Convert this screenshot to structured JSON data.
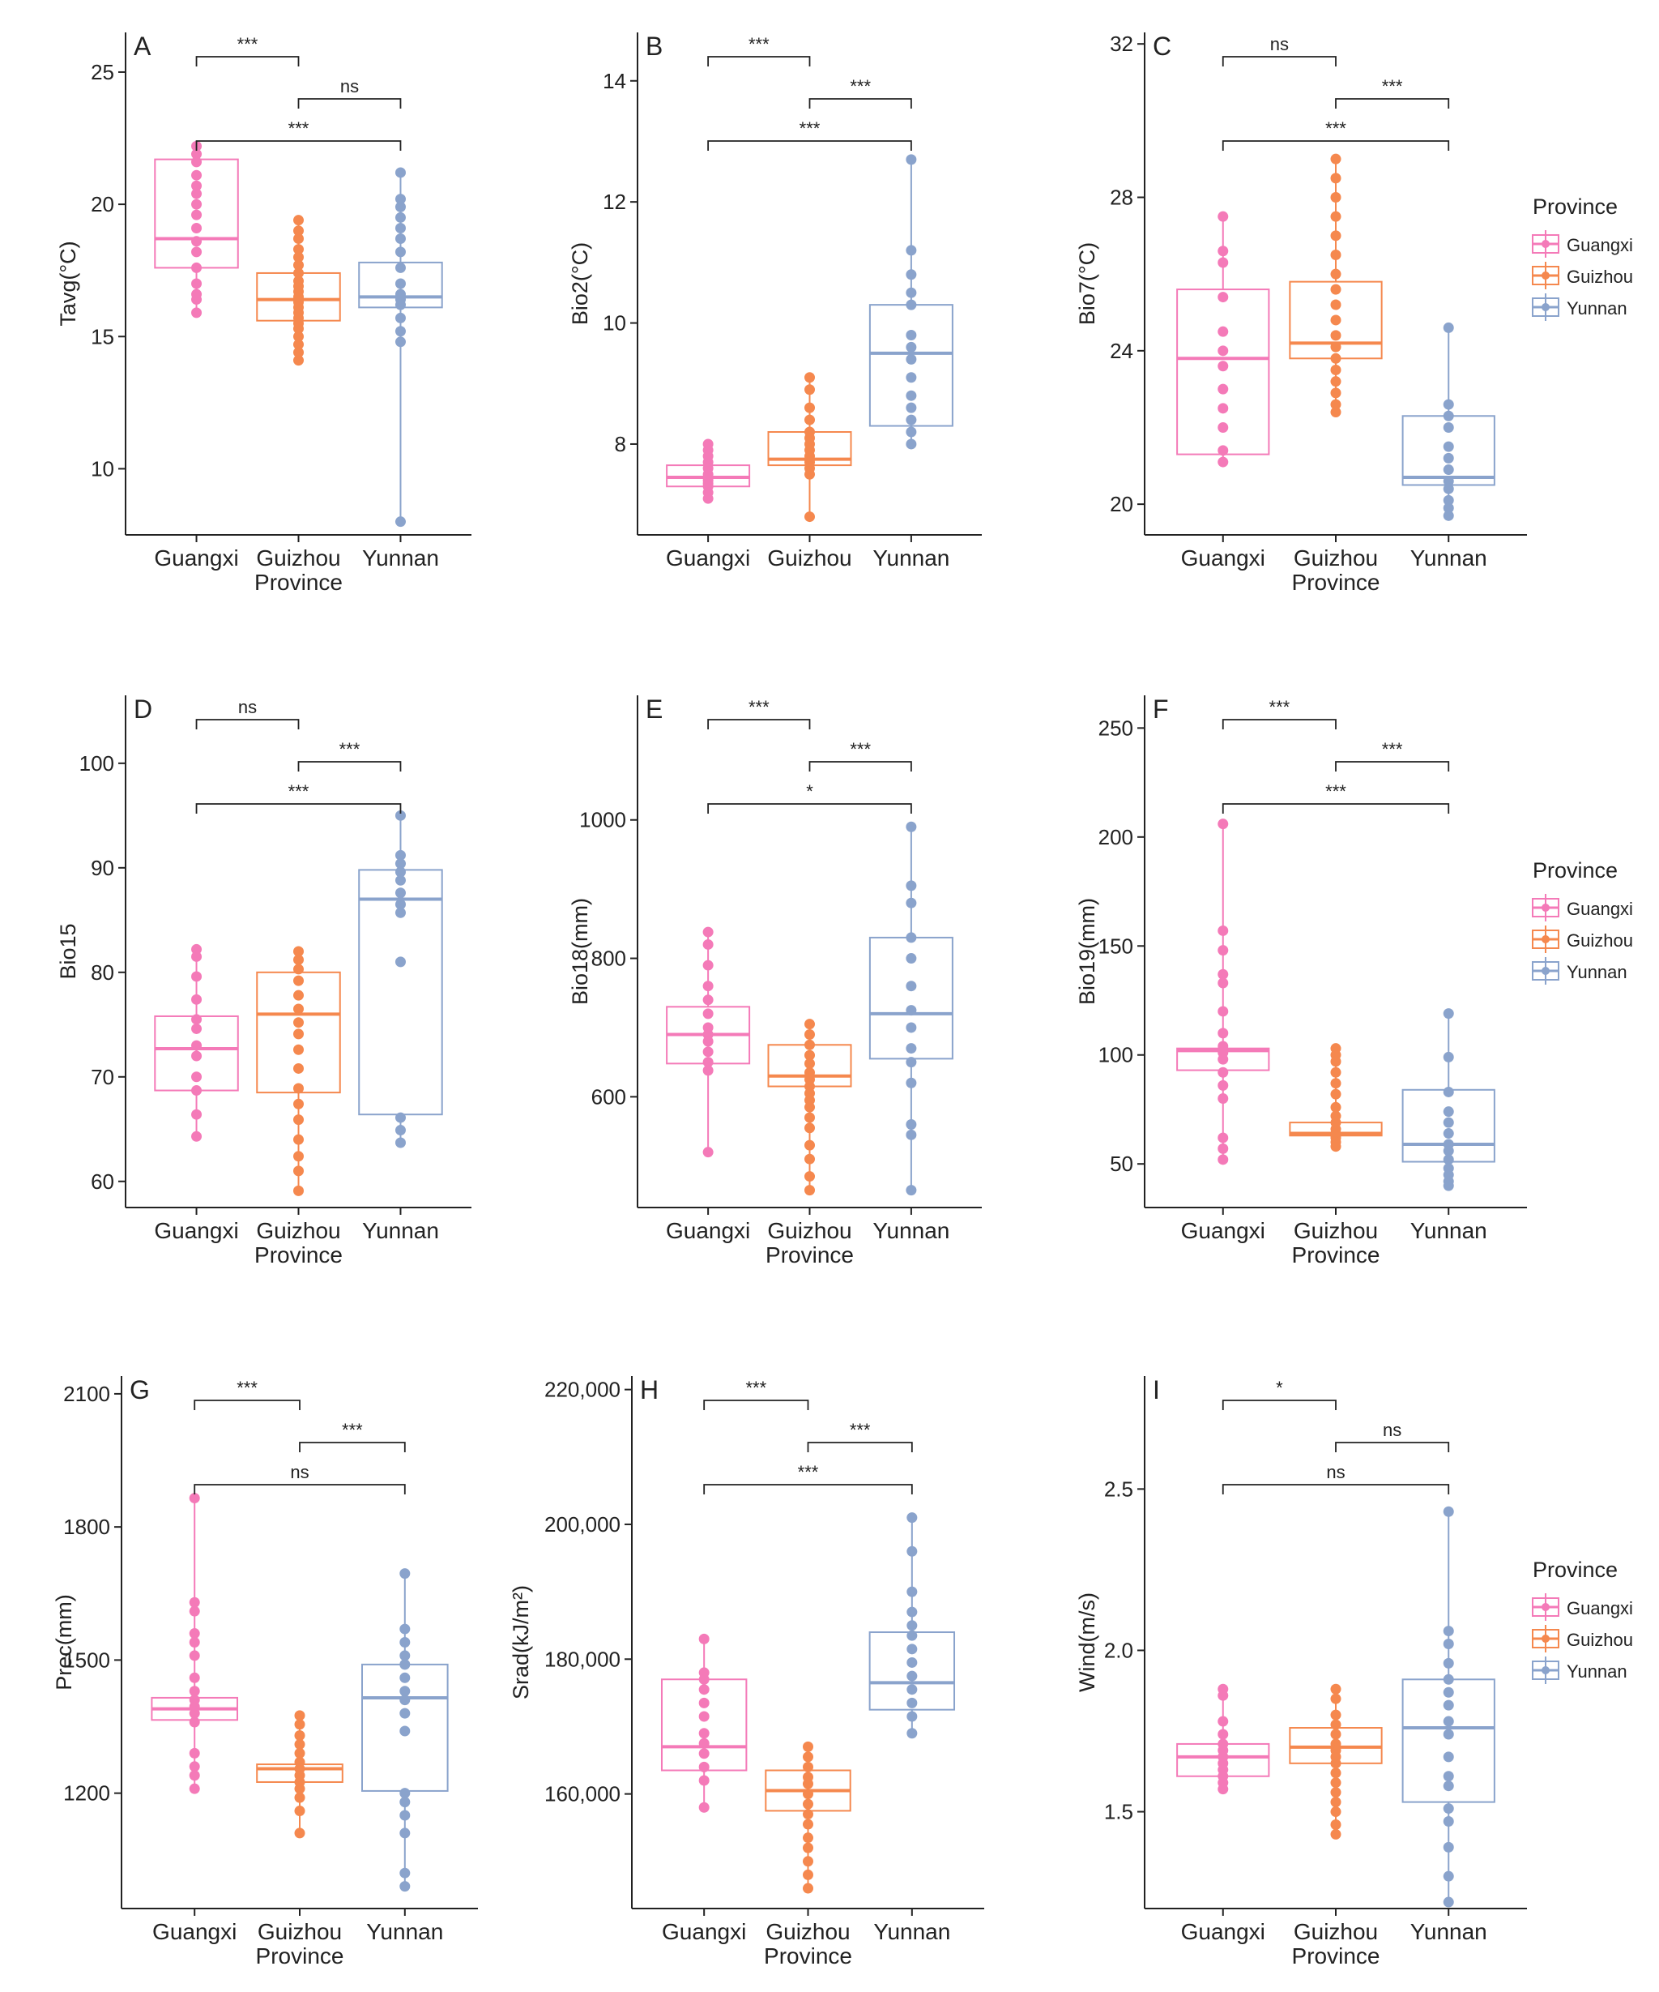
{
  "colors": {
    "Guangxi": "#F47AB8",
    "Guizhou": "#F5884E",
    "Yunnan": "#8AA3CC",
    "axis": "#222222"
  },
  "legend": {
    "title": "Province",
    "items": [
      "Guangxi",
      "Guizhou",
      "Yunnan"
    ]
  },
  "chart_data": [
    {
      "type": "box",
      "panel": "A",
      "ylabel": "Tavg(°C)",
      "xlabel": "Province",
      "categories": [
        "Guangxi",
        "Guizhou",
        "Yunnan"
      ],
      "ylim": [
        7.5,
        26.5
      ],
      "yticks": [
        10,
        15,
        20,
        25
      ],
      "boxes": [
        {
          "q1": 17.6,
          "median": 18.7,
          "q3": 21.7
        },
        {
          "q1": 15.6,
          "median": 16.4,
          "q3": 17.4
        },
        {
          "q1": 16.1,
          "median": 16.5,
          "q3": 17.8
        }
      ],
      "points": [
        [
          22.2,
          21.9,
          21.6,
          21.1,
          20.7,
          20.4,
          20.0,
          19.6,
          19.1,
          18.6,
          18.2,
          17.6,
          17.0,
          16.6,
          16.4,
          15.9
        ],
        [
          19.4,
          19.0,
          18.7,
          18.3,
          18.0,
          17.7,
          17.4,
          17.1,
          16.9,
          16.7,
          16.5,
          16.3,
          16.1,
          15.9,
          15.7,
          15.5,
          15.3,
          15.0,
          14.7,
          14.4,
          14.1
        ],
        [
          21.2,
          20.2,
          19.9,
          19.5,
          19.1,
          18.7,
          18.2,
          17.6,
          17.0,
          16.6,
          16.4,
          16.2,
          15.7,
          15.2,
          14.8,
          8.0
        ]
      ],
      "comparisons": [
        {
          "from": 0,
          "to": 1,
          "label": "***"
        },
        {
          "from": 1,
          "to": 2,
          "label": "ns"
        },
        {
          "from": 0,
          "to": 2,
          "label": "***"
        }
      ]
    },
    {
      "type": "box",
      "panel": "B",
      "ylabel": "Bio2(°C)",
      "xlabel": "",
      "categories": [
        "Guangxi",
        "Guizhou",
        "Yunnan"
      ],
      "ylim": [
        6.5,
        14.8
      ],
      "yticks": [
        8,
        10,
        12,
        14
      ],
      "boxes": [
        {
          "q1": 7.3,
          "median": 7.45,
          "q3": 7.65
        },
        {
          "q1": 7.65,
          "median": 7.75,
          "q3": 8.2
        },
        {
          "q1": 8.3,
          "median": 9.5,
          "q3": 10.3
        }
      ],
      "points": [
        [
          8.0,
          7.9,
          7.8,
          7.7,
          7.6,
          7.5,
          7.45,
          7.4,
          7.35,
          7.3,
          7.2,
          7.1
        ],
        [
          9.1,
          8.9,
          8.6,
          8.4,
          8.2,
          8.1,
          8.0,
          7.9,
          7.8,
          7.75,
          7.7,
          7.6,
          7.5,
          6.8
        ],
        [
          12.7,
          11.2,
          10.8,
          10.5,
          10.3,
          9.8,
          9.6,
          9.4,
          9.1,
          8.8,
          8.6,
          8.4,
          8.2,
          8.0
        ]
      ],
      "comparisons": [
        {
          "from": 0,
          "to": 1,
          "label": "***"
        },
        {
          "from": 1,
          "to": 2,
          "label": "***"
        },
        {
          "from": 0,
          "to": 2,
          "label": "***"
        }
      ]
    },
    {
      "type": "box",
      "panel": "C",
      "ylabel": "Bio7(°C)",
      "xlabel": "Province",
      "categories": [
        "Guangxi",
        "Guizhou",
        "Yunnan"
      ],
      "ylim": [
        19.2,
        32.3
      ],
      "yticks": [
        20,
        24,
        28,
        32
      ],
      "boxes": [
        {
          "q1": 21.3,
          "median": 23.8,
          "q3": 25.6
        },
        {
          "q1": 23.8,
          "median": 24.2,
          "q3": 25.8
        },
        {
          "q1": 20.5,
          "median": 20.7,
          "q3": 22.3
        }
      ],
      "points": [
        [
          27.5,
          26.6,
          26.3,
          25.4,
          24.5,
          24.0,
          23.6,
          23.0,
          22.5,
          22.0,
          21.4,
          21.1
        ],
        [
          29.0,
          28.5,
          28.0,
          27.5,
          27.0,
          26.5,
          26.0,
          25.6,
          25.2,
          24.8,
          24.4,
          24.1,
          23.8,
          23.5,
          23.2,
          22.9,
          22.6,
          22.4
        ],
        [
          24.6,
          22.6,
          22.3,
          22.0,
          21.5,
          21.2,
          20.9,
          20.6,
          20.4,
          20.1,
          19.9,
          19.7
        ]
      ],
      "comparisons": [
        {
          "from": 0,
          "to": 1,
          "label": "ns"
        },
        {
          "from": 1,
          "to": 2,
          "label": "***"
        },
        {
          "from": 0,
          "to": 2,
          "label": "***"
        }
      ]
    },
    {
      "type": "box",
      "panel": "D",
      "ylabel": "Bio15",
      "xlabel": "Province",
      "categories": [
        "Guangxi",
        "Guizhou",
        "Yunnan"
      ],
      "ylim": [
        57.5,
        106.5
      ],
      "yticks": [
        60,
        70,
        80,
        90,
        100
      ],
      "boxes": [
        {
          "q1": 68.7,
          "median": 72.7,
          "q3": 75.8
        },
        {
          "q1": 68.5,
          "median": 76.0,
          "q3": 80.0
        },
        {
          "q1": 66.4,
          "median": 87.0,
          "q3": 89.8
        }
      ],
      "points": [
        [
          82.2,
          81.5,
          79.6,
          77.4,
          75.5,
          74.6,
          73.0,
          72.0,
          70.0,
          68.7,
          66.4,
          64.3
        ],
        [
          82.0,
          81.2,
          80.3,
          79.2,
          77.8,
          76.5,
          75.2,
          74.1,
          72.6,
          70.8,
          68.9,
          67.4,
          65.9,
          64.0,
          62.4,
          61.0,
          59.1
        ],
        [
          95.0,
          91.2,
          90.4,
          89.6,
          88.8,
          87.6,
          86.5,
          85.7,
          81.0,
          66.1,
          64.9,
          63.7
        ]
      ],
      "comparisons": [
        {
          "from": 0,
          "to": 1,
          "label": "ns"
        },
        {
          "from": 1,
          "to": 2,
          "label": "***"
        },
        {
          "from": 0,
          "to": 2,
          "label": "***"
        }
      ]
    },
    {
      "type": "box",
      "panel": "E",
      "ylabel": "Bio18(mm)",
      "xlabel": "Province",
      "categories": [
        "Guangxi",
        "Guizhou",
        "Yunnan"
      ],
      "ylim": [
        440,
        1180
      ],
      "yticks": [
        600,
        800,
        1000
      ],
      "boxes": [
        {
          "q1": 648,
          "median": 690,
          "q3": 730
        },
        {
          "q1": 615,
          "median": 630,
          "q3": 675
        },
        {
          "q1": 655,
          "median": 720,
          "q3": 830
        }
      ],
      "points": [
        [
          838,
          820,
          790,
          760,
          740,
          720,
          700,
          690,
          680,
          665,
          650,
          638,
          520
        ],
        [
          705,
          690,
          675,
          660,
          648,
          635,
          625,
          615,
          605,
          595,
          585,
          570,
          555,
          530,
          510,
          485,
          465
        ],
        [
          990,
          905,
          880,
          830,
          800,
          760,
          725,
          700,
          670,
          650,
          620,
          560,
          545,
          465
        ]
      ],
      "comparisons": [
        {
          "from": 0,
          "to": 1,
          "label": "***"
        },
        {
          "from": 1,
          "to": 2,
          "label": "***"
        },
        {
          "from": 0,
          "to": 2,
          "label": "*"
        }
      ]
    },
    {
      "type": "box",
      "panel": "F",
      "ylabel": "Bio19(mm)",
      "xlabel": "Province",
      "categories": [
        "Guangxi",
        "Guizhou",
        "Yunnan"
      ],
      "ylim": [
        30,
        265
      ],
      "yticks": [
        50,
        100,
        150,
        200,
        250
      ],
      "boxes": [
        {
          "q1": 93,
          "median": 102,
          "q3": 103
        },
        {
          "q1": 63,
          "median": 64,
          "q3": 69
        },
        {
          "q1": 51,
          "median": 59,
          "q3": 84
        }
      ],
      "points": [
        [
          206,
          157,
          148,
          137,
          133,
          120,
          110,
          104,
          101,
          98,
          92,
          86,
          80,
          62,
          57,
          52
        ],
        [
          103,
          100,
          97,
          92,
          87,
          82,
          76,
          72,
          69,
          66,
          64,
          63,
          62,
          60,
          58
        ],
        [
          119,
          99,
          83,
          74,
          69,
          64,
          59,
          56,
          52,
          48,
          45,
          42,
          40
        ]
      ],
      "comparisons": [
        {
          "from": 0,
          "to": 1,
          "label": "***"
        },
        {
          "from": 1,
          "to": 2,
          "label": "***"
        },
        {
          "from": 0,
          "to": 2,
          "label": "***"
        }
      ]
    },
    {
      "type": "box",
      "panel": "G",
      "ylabel": "Prec(mm)",
      "xlabel": "Province",
      "categories": [
        "Guangxi",
        "Guizhou",
        "Yunnan"
      ],
      "ylim": [
        940,
        2140
      ],
      "yticks": [
        1200,
        1500,
        1800,
        2100
      ],
      "boxes": [
        {
          "q1": 1365,
          "median": 1390,
          "q3": 1415
        },
        {
          "q1": 1225,
          "median": 1255,
          "q3": 1265
        },
        {
          "q1": 1205,
          "median": 1415,
          "q3": 1490
        }
      ],
      "points": [
        [
          1865,
          1630,
          1610,
          1560,
          1540,
          1510,
          1460,
          1430,
          1410,
          1395,
          1380,
          1360,
          1290,
          1260,
          1240,
          1210
        ],
        [
          1375,
          1355,
          1330,
          1310,
          1290,
          1270,
          1255,
          1240,
          1225,
          1210,
          1190,
          1160,
          1110
        ],
        [
          1695,
          1570,
          1540,
          1510,
          1490,
          1460,
          1430,
          1410,
          1380,
          1340,
          1200,
          1180,
          1150,
          1110,
          1020,
          990
        ]
      ],
      "comparisons": [
        {
          "from": 0,
          "to": 1,
          "label": "***"
        },
        {
          "from": 1,
          "to": 2,
          "label": "***"
        },
        {
          "from": 0,
          "to": 2,
          "label": "ns"
        }
      ]
    },
    {
      "type": "box",
      "panel": "H",
      "ylabel": "Srad(kJ/m²)",
      "xlabel": "Province",
      "categories": [
        "Guangxi",
        "Guizhou",
        "Yunnan"
      ],
      "ylim": [
        143000,
        222000
      ],
      "yticks": [
        160000,
        180000,
        200000,
        220000
      ],
      "ytick_labels": [
        "160,000",
        "180,000",
        "200,000",
        "220,000"
      ],
      "boxes": [
        {
          "q1": 163500,
          "median": 167000,
          "q3": 177000
        },
        {
          "q1": 157500,
          "median": 160500,
          "q3": 163500
        },
        {
          "q1": 172500,
          "median": 176500,
          "q3": 184000
        }
      ],
      "points": [
        [
          183000,
          178000,
          177000,
          175500,
          173500,
          171500,
          169000,
          167500,
          166000,
          164000,
          162000,
          158000
        ],
        [
          167000,
          165500,
          164000,
          162500,
          161500,
          160000,
          158500,
          157000,
          155500,
          153500,
          152000,
          150000,
          148000,
          146000
        ],
        [
          201000,
          196000,
          190000,
          187000,
          185000,
          183500,
          181500,
          179500,
          177500,
          175500,
          173500,
          171500,
          169000
        ]
      ],
      "comparisons": [
        {
          "from": 0,
          "to": 1,
          "label": "***"
        },
        {
          "from": 1,
          "to": 2,
          "label": "***"
        },
        {
          "from": 0,
          "to": 2,
          "label": "***"
        }
      ]
    },
    {
      "type": "box",
      "panel": "I",
      "ylabel": "Wind(m/s)",
      "xlabel": "Province",
      "categories": [
        "Guangxi",
        "Guizhou",
        "Yunnan"
      ],
      "ylim": [
        1.2,
        2.85
      ],
      "yticks": [
        1.5,
        2.0,
        2.5
      ],
      "ytick_labels": [
        "1.5",
        "2.0",
        "2.5"
      ],
      "boxes": [
        {
          "q1": 1.61,
          "median": 1.67,
          "q3": 1.71
        },
        {
          "q1": 1.65,
          "median": 1.7,
          "q3": 1.76
        },
        {
          "q1": 1.53,
          "median": 1.76,
          "q3": 1.91
        }
      ],
      "points": [
        [
          1.88,
          1.86,
          1.78,
          1.74,
          1.71,
          1.69,
          1.67,
          1.65,
          1.63,
          1.61,
          1.59,
          1.57
        ],
        [
          1.88,
          1.85,
          1.8,
          1.77,
          1.74,
          1.71,
          1.69,
          1.67,
          1.65,
          1.62,
          1.59,
          1.56,
          1.53,
          1.5,
          1.46,
          1.43
        ],
        [
          2.43,
          2.06,
          2.02,
          1.96,
          1.91,
          1.87,
          1.83,
          1.78,
          1.74,
          1.67,
          1.61,
          1.58,
          1.51,
          1.47,
          1.39,
          1.3,
          1.22
        ]
      ],
      "comparisons": [
        {
          "from": 0,
          "to": 1,
          "label": "*"
        },
        {
          "from": 1,
          "to": 2,
          "label": "ns"
        },
        {
          "from": 0,
          "to": 2,
          "label": "ns"
        }
      ]
    }
  ]
}
